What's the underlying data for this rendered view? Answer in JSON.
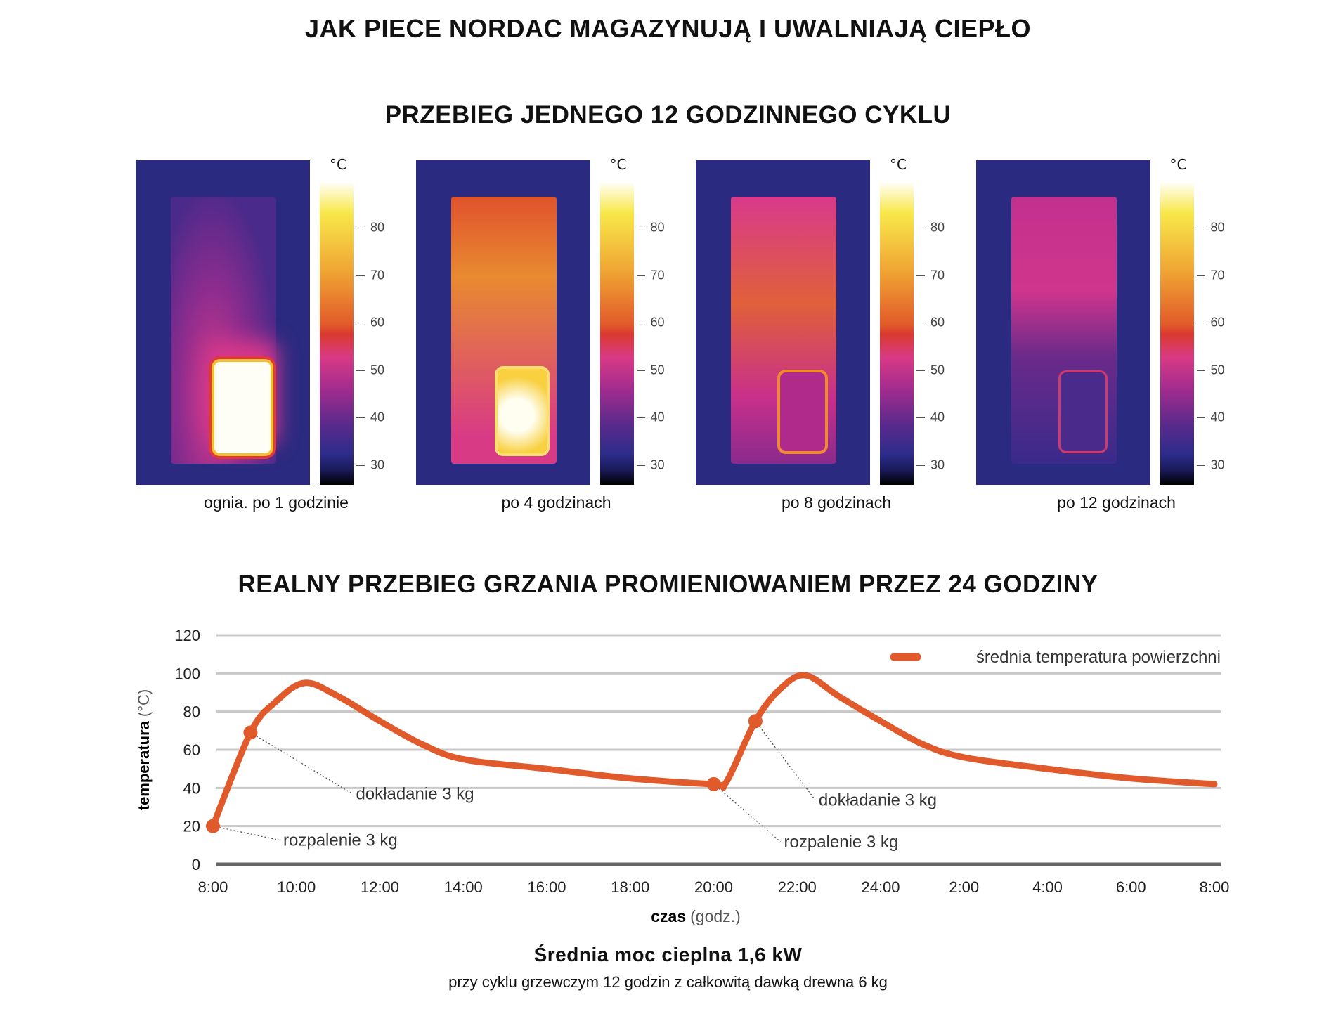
{
  "title": "JAK PIECE NORDAC MAGAZYNUJĄ I UWALNIAJĄ CIEPŁO",
  "subtitle": "PRZEBIEG JEDNEGO 12 GODZINNEGO CYKLU",
  "colorbar": {
    "unit": "°C",
    "ticks": [
      "80",
      "70",
      "60",
      "50",
      "40",
      "30"
    ]
  },
  "panels": [
    {
      "caption": "ognia. po 1 godzinie"
    },
    {
      "caption": "po 4 godzinach"
    },
    {
      "caption": "po 8 godzinach"
    },
    {
      "caption": "po 12 godzinach"
    }
  ],
  "chart_data": {
    "type": "line",
    "title": "REALNY PRZEBIEG GRZANIA PROMIENIOWANIEM PRZEZ 24 GODZINY",
    "ylabel_bold": "temperatura",
    "ylabel_unit": "(°C)",
    "xlabel_bold": "czas",
    "xlabel_unit": "(godz.)",
    "ylim": [
      0,
      120
    ],
    "yticks": [
      0,
      20,
      40,
      60,
      80,
      100,
      120
    ],
    "xlim": [
      0,
      24
    ],
    "xtick_labels": [
      "8:00",
      "10:00",
      "12:00",
      "14:00",
      "16:00",
      "18:00",
      "20:00",
      "22:00",
      "24:00",
      "2:00",
      "4:00",
      "6:00",
      "8:00"
    ],
    "legend": "top-right",
    "color": "#e05a2b",
    "series": [
      {
        "name": "średnia temperatura powierzchni",
        "x": [
          0,
          0.9,
          1.5,
          2.2,
          3,
          4,
          5,
          6,
          8,
          10,
          12,
          12.3,
          13,
          13.6,
          14.2,
          15,
          16,
          17,
          18,
          20,
          22,
          24
        ],
        "y": [
          20,
          69,
          85,
          95,
          88,
          75,
          63,
          55,
          50,
          45,
          42,
          43,
          75,
          92,
          99,
          88,
          75,
          63,
          56,
          50,
          45,
          42
        ]
      }
    ],
    "markers": [
      {
        "x": 0,
        "y": 20,
        "label": "rozpalenie 3 kg"
      },
      {
        "x": 0.9,
        "y": 69,
        "label": "dokładanie 3 kg"
      },
      {
        "x": 12,
        "y": 42,
        "label": "rozpalenie 3 kg"
      },
      {
        "x": 13,
        "y": 75,
        "label": "dokładanie 3 kg"
      }
    ]
  },
  "summary": {
    "headline": "Średnia moc cieplna 1,6 kW",
    "detail": "przy cyklu grzewczym 12 godzin z całkowitą dawką drewna 6 kg"
  }
}
